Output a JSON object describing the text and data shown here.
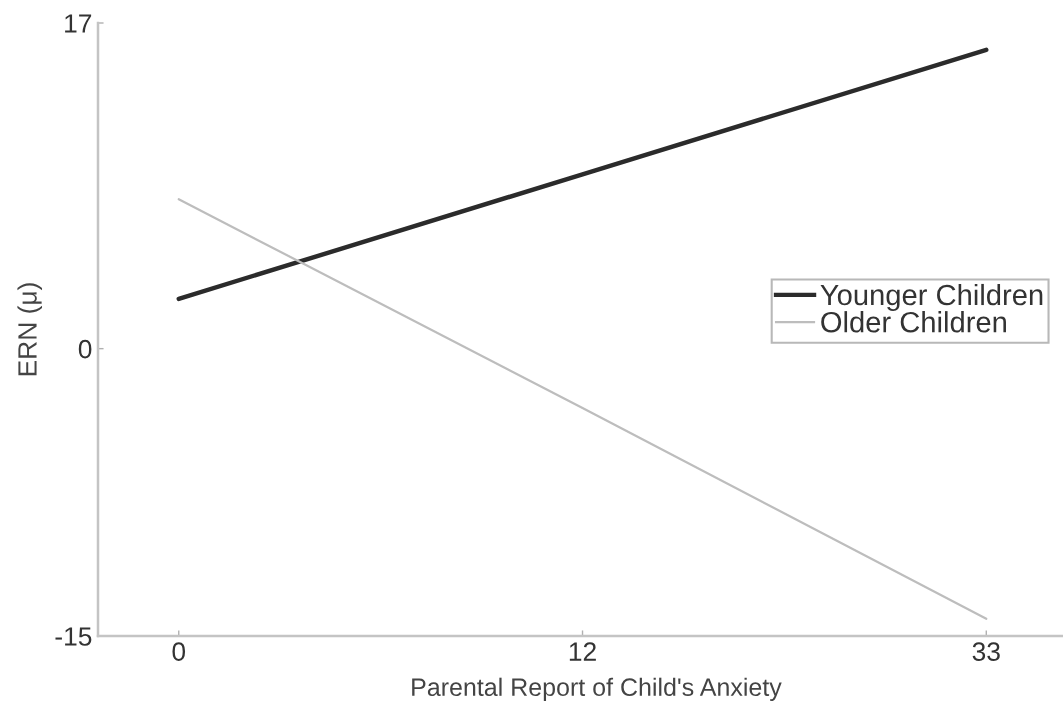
{
  "chart_data": {
    "type": "line",
    "xlabel": "Parental Report of Child's Anxiety",
    "ylabel": "ERN (μ)",
    "categories": [
      "0",
      "12",
      "33"
    ],
    "series": [
      {
        "name": "Younger Children",
        "color": "#2b2b2b",
        "values": [
          2.6,
          9.1,
          15.6
        ]
      },
      {
        "name": "Older Children",
        "color": "#bdbdbd",
        "values": [
          7.8,
          -3.1,
          -14.1
        ]
      }
    ],
    "ylim": [
      -15,
      17
    ],
    "yticks": [
      -15,
      0,
      17
    ],
    "legend": "right"
  }
}
